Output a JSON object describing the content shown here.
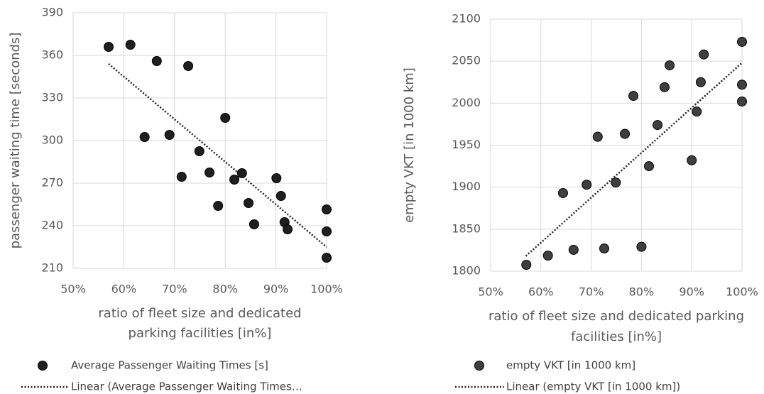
{
  "chart_data": [
    {
      "type": "scatter",
      "ylabel": "passenger waiting time [seconds]",
      "xlabel": [
        "ratio of fleet size and dedicated",
        "parking facilities [in%]"
      ],
      "xlim": [
        50,
        100
      ],
      "ylim": [
        210,
        390
      ],
      "xticks": [
        {
          "value": 50,
          "label": "50%"
        },
        {
          "value": 60,
          "label": "60%"
        },
        {
          "value": 70,
          "label": "70%"
        },
        {
          "value": 80,
          "label": "80%"
        },
        {
          "value": 90,
          "label": "90%"
        },
        {
          "value": 100,
          "label": "100%"
        }
      ],
      "yticks": [
        210,
        240,
        270,
        300,
        330,
        360,
        390
      ],
      "grid": true,
      "series": [
        {
          "name": "Average Passenger Waiting Times  [s]",
          "color": "#1f1f1f",
          "x": [
            57,
            61.3,
            66.5,
            72.7,
            64.1,
            69,
            80,
            74.9,
            71.4,
            76.9,
            83.3,
            81.8,
            78.6,
            90.1,
            91,
            84.6,
            85.7,
            91.7,
            92.3,
            100,
            100,
            100
          ],
          "values": [
            366,
            367.5,
            356,
            352.5,
            302.5,
            304,
            316,
            292.5,
            274.5,
            277.5,
            277,
            272.5,
            254,
            273.5,
            261,
            256,
            241,
            242.5,
            237.5,
            251.5,
            236,
            217.5
          ]
        },
        {
          "name": "Linear (Average Passenger Waiting Times…",
          "color": "#1f1f1f",
          "x": [
            57,
            100
          ],
          "values": [
            354,
            225
          ]
        }
      ]
    },
    {
      "type": "scatter",
      "ylabel": "empty VKT [in 1000 km]",
      "xlabel": [
        "ratio of fleet size and dedicated parking",
        "facilities [in%]"
      ],
      "xlim": [
        50,
        100
      ],
      "ylim": [
        1800,
        2100
      ],
      "xticks": [
        {
          "value": 50,
          "label": "50%"
        },
        {
          "value": 60,
          "label": "60%"
        },
        {
          "value": 70,
          "label": "70%"
        },
        {
          "value": 80,
          "label": "80%"
        },
        {
          "value": 90,
          "label": "90%"
        },
        {
          "value": 100,
          "label": "100%"
        }
      ],
      "yticks": [
        1800,
        1850,
        1900,
        1950,
        2000,
        2050,
        2100
      ],
      "grid": true,
      "series": [
        {
          "name": "empty VKT [in 1000 km]",
          "color": "#3f3f3f",
          "x": [
            57.1,
            61.4,
            66.5,
            72.6,
            80,
            64.4,
            69.1,
            71.3,
            74.9,
            76.7,
            78.4,
            81.5,
            83.2,
            84.6,
            85.6,
            90,
            91,
            91.8,
            92.4,
            100,
            100,
            100
          ],
          "values": [
            1807.6,
            1818.6,
            1825.4,
            1827,
            1829,
            1893,
            1903,
            1960,
            1905.5,
            1963.5,
            2008.7,
            1925,
            1974,
            2019,
            2045,
            1932,
            1990,
            2025,
            2058,
            2073,
            2022,
            2002
          ]
        },
        {
          "name": "Linear (empty VKT [in 1000 km])",
          "color": "#1f1f1f",
          "x": [
            57,
            100
          ],
          "values": [
            1818,
            2048
          ]
        }
      ]
    }
  ]
}
